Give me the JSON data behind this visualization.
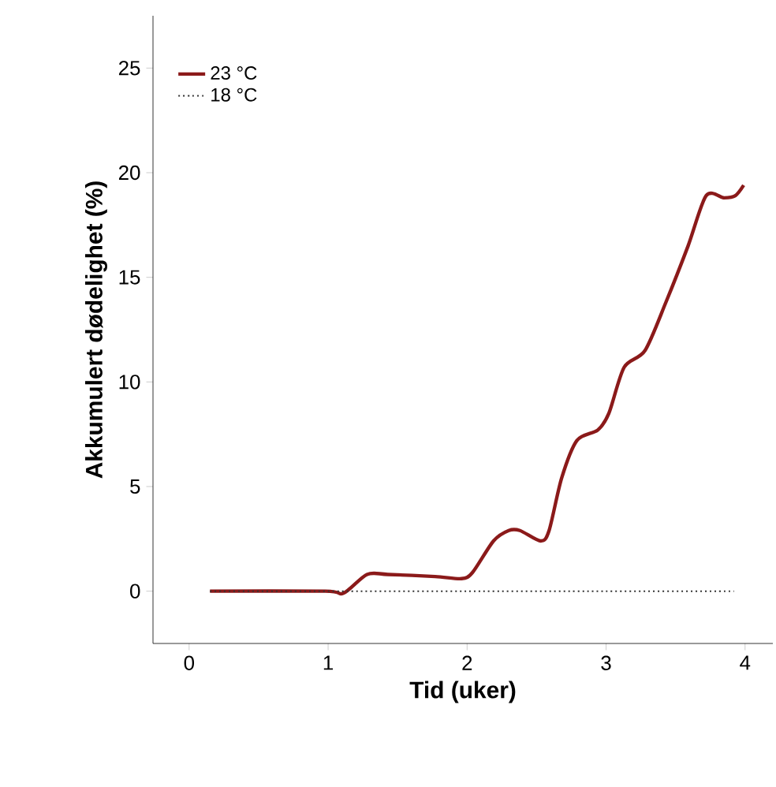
{
  "chart_data": {
    "type": "line",
    "xlabel": "Tid (uker)",
    "ylabel": "Akkumulert dødelighet (%)",
    "xlim": [
      -0.26,
      4.2
    ],
    "ylim": [
      -2.5,
      27.5
    ],
    "xticks": [
      0,
      1,
      2,
      3,
      4
    ],
    "yticks": [
      0,
      5,
      10,
      15,
      20,
      25
    ],
    "legend": "top left",
    "grid": false,
    "series": [
      {
        "name": "23 °C",
        "color": "#8b1a1a",
        "line_style": "solid",
        "x": [
          0.15,
          0.98,
          1.11,
          1.28,
          1.43,
          1.77,
          1.96,
          2.04,
          2.19,
          2.3,
          2.38,
          2.53,
          2.59,
          2.68,
          2.79,
          2.94,
          3.02,
          3.13,
          3.28,
          3.43,
          3.59,
          3.72,
          3.85,
          3.93,
          3.99
        ],
        "values": [
          0,
          0,
          -0.1,
          0.8,
          0.8,
          0.7,
          0.6,
          0.9,
          2.4,
          2.9,
          2.9,
          2.4,
          2.9,
          5.4,
          7.2,
          7.7,
          8.5,
          10.7,
          11.5,
          13.8,
          16.5,
          18.9,
          18.8,
          18.9,
          19.4
        ]
      },
      {
        "name": "18 °C",
        "color": "#333333",
        "line_style": "dotted",
        "x": [
          0.15,
          1.22,
          2,
          3,
          3.92
        ],
        "values": [
          0,
          0,
          0,
          0,
          0
        ]
      }
    ]
  }
}
